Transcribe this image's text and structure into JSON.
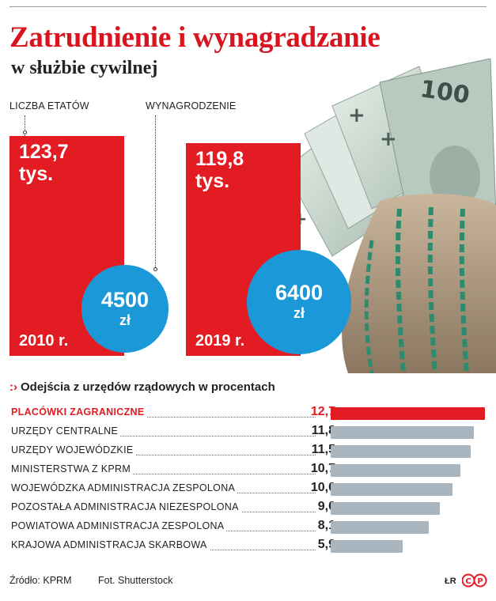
{
  "header": {
    "title": "Zatrudnienie i wynagradzanie",
    "subtitle": "w służbie cywilnej"
  },
  "labels": {
    "employment": "LICZBA ETATÓW",
    "salary": "WYNAGRODZENIE"
  },
  "chart_data": [
    {
      "type": "bar",
      "categories": [
        "2010 r.",
        "2019 r."
      ],
      "series": [
        {
          "name": "LICZBA ETATÓW",
          "values": [
            123.7,
            119.8
          ],
          "labels": [
            "123,7",
            "119,8"
          ],
          "unit": "tys."
        },
        {
          "name": "WYNAGRODZENIE",
          "values": [
            4500,
            6400
          ],
          "labels": [
            "4500",
            "6400"
          ],
          "unit": "zł"
        }
      ]
    },
    {
      "type": "bar",
      "orientation": "horizontal",
      "title": "Odejścia z urzędów rządowych w procentach",
      "categories": [
        "PLACÓWKI ZAGRANICZNE",
        "URZĘDY CENTRALNE",
        "URZĘDY WOJEWÓDZKIE",
        "MINISTERSTWA Z KPRM",
        "WOJEWÓDZKA ADMINISTRACJA ZESPOLONA",
        "POZOSTAŁA ADMINISTRACJA NIEZESPOLONA",
        "POWIATOWA ADMINISTRACJA ZESPOLONA",
        "KRAJOWA ADMINISTRACJA SKARBOWA"
      ],
      "values": [
        12.7,
        11.8,
        11.5,
        10.7,
        10.0,
        9.0,
        8.1,
        5.9
      ],
      "value_labels": [
        "12,7",
        "11,8",
        "11,5",
        "10,7",
        "10,0",
        "9,0",
        "8,1",
        "5,9"
      ],
      "xlim": [
        0,
        12.7
      ],
      "highlight_index": 0,
      "colors": {
        "highlight": "#e31b23",
        "default": "#aab6bf"
      }
    }
  ],
  "colors": {
    "red": "#e31b23",
    "blue": "#1a98d8",
    "title_red": "#d9141f"
  },
  "footer": {
    "source": "Źródło: KPRM",
    "photo": "Fot. Shutterstock",
    "initials": "ŁR",
    "logo": "ⒸⓅ"
  }
}
